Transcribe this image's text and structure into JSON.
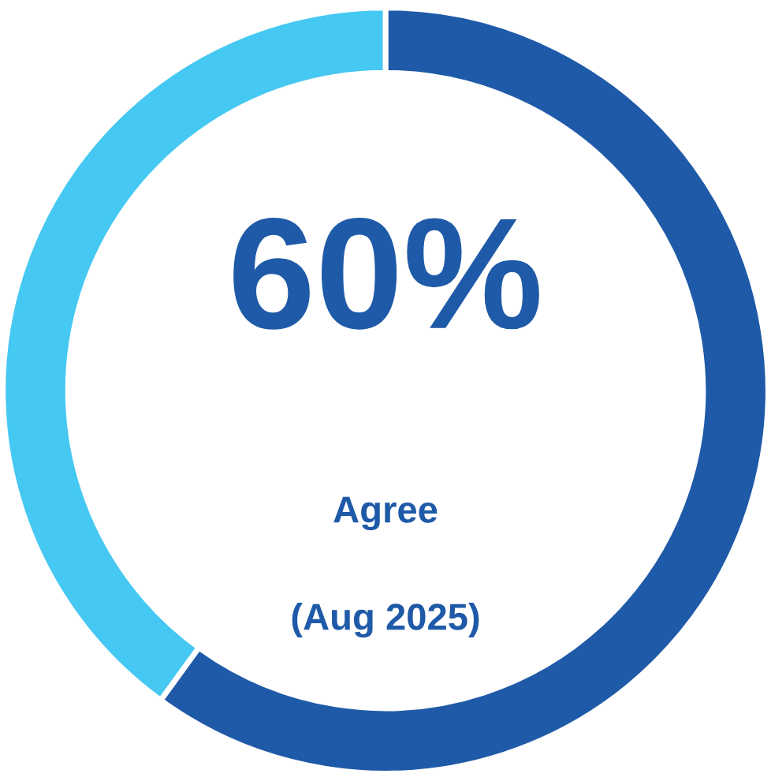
{
  "chart_data": {
    "type": "donut",
    "categories": [
      null,
      null
    ],
    "values": [
      60,
      40
    ],
    "colors": [
      "#1f5aa8",
      "#45c8f2"
    ],
    "annotations": [
      "60%",
      "Agree",
      "(Aug 2025)"
    ]
  }
}
